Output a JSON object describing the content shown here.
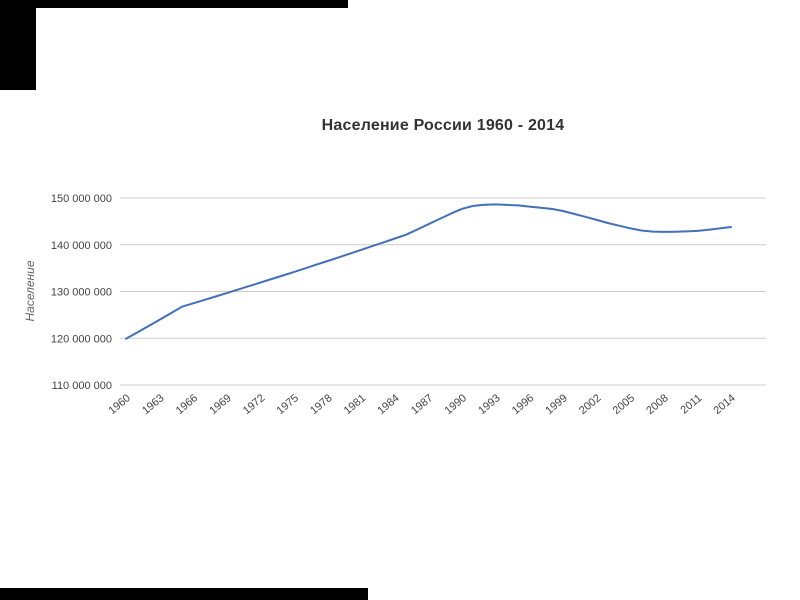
{
  "page": {
    "background": "#ffffff",
    "letterbox_color": "#000000"
  },
  "chart_data": {
    "type": "line",
    "title": "Население России 1960 - 2014",
    "ylabel": "Население",
    "xlabel": "",
    "grid": true,
    "legend": "none",
    "line_color": "#4270b8",
    "gridline_color": "#cccccc",
    "tick_color": "#444444",
    "axis_title_color": "#666666",
    "title_color": "#333333",
    "xlim": [
      1960,
      2014
    ],
    "ylim": [
      110000000,
      150000000
    ],
    "yticks": [
      110000000,
      120000000,
      130000000,
      140000000,
      150000000
    ],
    "ytick_labels": [
      "110 000 000",
      "120 000 000",
      "130 000 000",
      "140 000 000",
      "150 000 000"
    ],
    "xticks": [
      1960,
      1963,
      1966,
      1969,
      1972,
      1975,
      1978,
      1981,
      1984,
      1987,
      1990,
      1993,
      1996,
      1999,
      2002,
      2005,
      2008,
      2011,
      2014
    ],
    "series": [
      {
        "name": "Население",
        "x": [
          1960,
          1961,
          1962,
          1963,
          1964,
          1965,
          1966,
          1967,
          1968,
          1969,
          1970,
          1971,
          1972,
          1973,
          1974,
          1975,
          1976,
          1977,
          1978,
          1979,
          1980,
          1981,
          1982,
          1983,
          1984,
          1985,
          1986,
          1987,
          1988,
          1989,
          1990,
          1991,
          1992,
          1993,
          1994,
          1995,
          1996,
          1997,
          1998,
          1999,
          2000,
          2001,
          2002,
          2003,
          2004,
          2005,
          2006,
          2007,
          2008,
          2009,
          2010,
          2011,
          2012,
          2013,
          2014
        ],
        "values": [
          119897000,
          121236000,
          122591000,
          123960000,
          125345000,
          126745000,
          127468000,
          128196000,
          128928000,
          129665000,
          130404000,
          131155000,
          131909000,
          132668000,
          133431000,
          134200000,
          134972000,
          135750000,
          136532000,
          137319000,
          138112000,
          138910000,
          139713000,
          140520000,
          141333000,
          142152000,
          143263000,
          144387000,
          145519000,
          146659000,
          147700000,
          148300000,
          148538000,
          148625000,
          148533000,
          148418000,
          148160000,
          147915000,
          147671000,
          147215000,
          146597000,
          145976000,
          145306000,
          144648000,
          144067000,
          143518000,
          143050000,
          142805000,
          142742000,
          142785000,
          142849000,
          142961000,
          143202000,
          143507000,
          143793000
        ]
      }
    ]
  }
}
